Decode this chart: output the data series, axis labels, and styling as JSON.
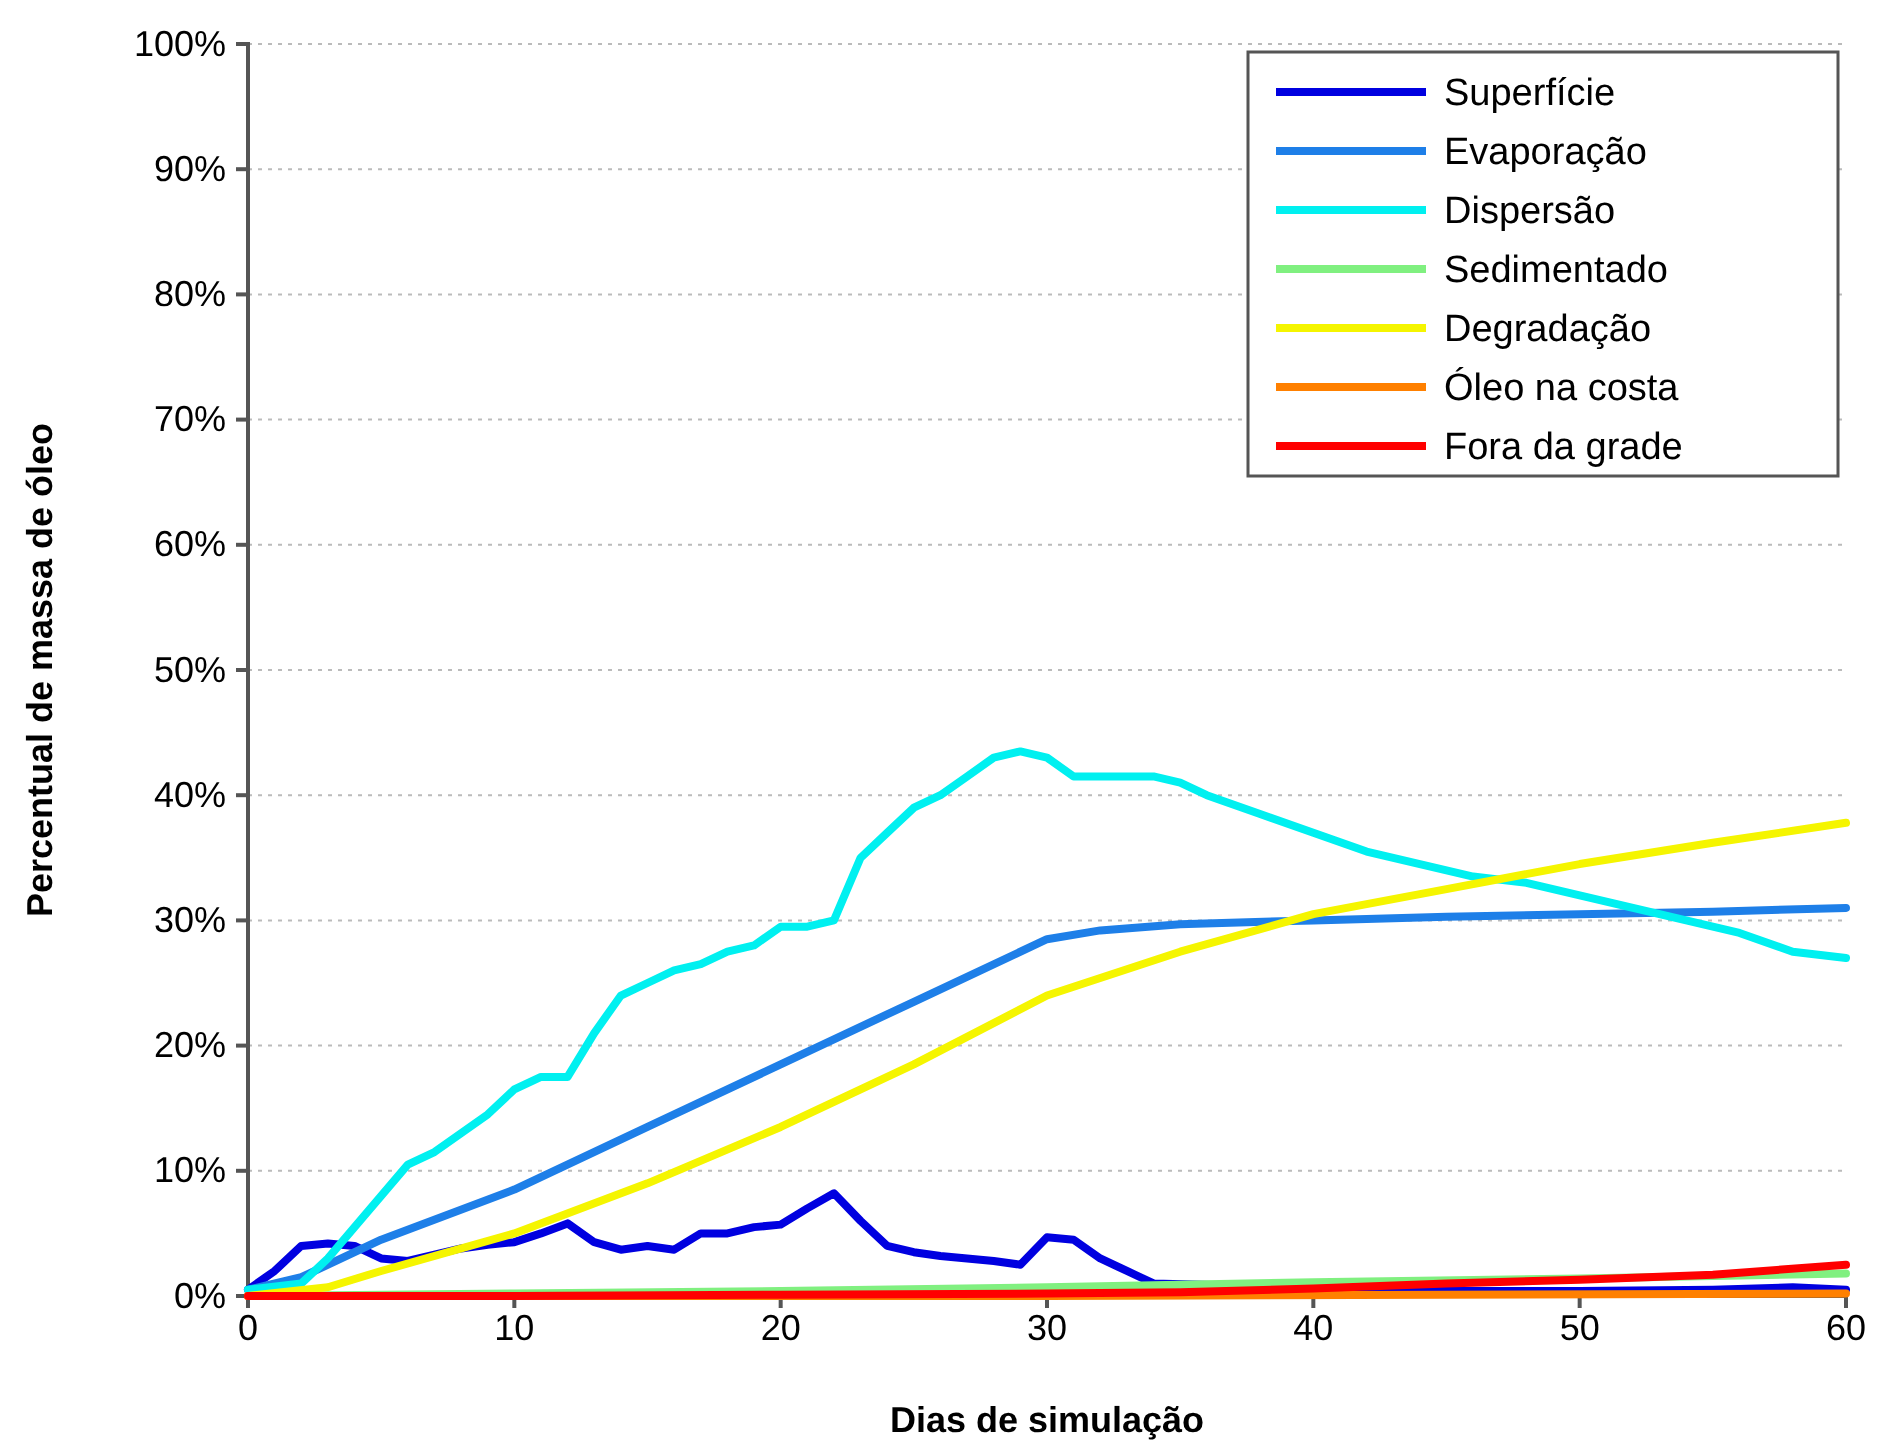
{
  "chart_data": {
    "type": "line",
    "xlabel": "Dias de simulação",
    "ylabel": "Percentual de massa de óleo",
    "xlim": [
      0,
      60
    ],
    "xticks": [
      0,
      10,
      20,
      30,
      40,
      50,
      60
    ],
    "ylim": [
      0,
      100
    ],
    "yticks": [
      {
        "value": 0,
        "label": "0%"
      },
      {
        "value": 10,
        "label": "10%"
      },
      {
        "value": 20,
        "label": "20%"
      },
      {
        "value": 30,
        "label": "30%"
      },
      {
        "value": 40,
        "label": "40%"
      },
      {
        "value": 50,
        "label": "50%"
      },
      {
        "value": 60,
        "label": "60%"
      },
      {
        "value": 70,
        "label": "70%"
      },
      {
        "value": 80,
        "label": "80%"
      },
      {
        "value": 90,
        "label": "90%"
      },
      {
        "value": 100,
        "label": "100%"
      }
    ],
    "grid": "y",
    "legend": "top right",
    "marker": "none",
    "line_style": "solid",
    "series": [
      {
        "name": "Superfície",
        "color": "#0000e0",
        "x": [
          0,
          1,
          2,
          3,
          4,
          5,
          6,
          7,
          8,
          9,
          10,
          11,
          12,
          13,
          14,
          15,
          16,
          17,
          18,
          19,
          20,
          21,
          22,
          23,
          24,
          25,
          26,
          27,
          28,
          29,
          30,
          31,
          32,
          33,
          34,
          35,
          40,
          45,
          50,
          55,
          58,
          60
        ],
        "values": [
          0.5,
          2,
          4,
          4.2,
          4,
          3,
          2.8,
          3.3,
          3.8,
          4.1,
          4.3,
          5,
          5.8,
          4.3,
          3.7,
          4,
          3.7,
          5,
          5,
          5.5,
          5.7,
          7,
          8.2,
          6,
          4,
          3.5,
          3.2,
          3,
          2.8,
          2.5,
          4.7,
          4.5,
          3,
          2,
          1,
          null,
          null,
          0.4,
          0.4,
          0.5,
          0.7,
          0.5
        ]
      },
      {
        "name": "Evaporação",
        "color": "#1e7fe8",
        "x": [
          0,
          2,
          5,
          10,
          15,
          20,
          25,
          30,
          32,
          35,
          40,
          45,
          50,
          55,
          60
        ],
        "values": [
          0.5,
          1.5,
          4.5,
          8.5,
          13.5,
          18.5,
          23.5,
          28.5,
          29.2,
          29.7,
          30,
          30.3,
          30.5,
          30.7,
          31
        ]
      },
      {
        "name": "Dispersão",
        "color": "#00f0f0",
        "x": [
          0,
          2,
          3,
          4,
          5,
          6,
          7,
          8,
          9,
          10,
          11,
          12,
          13,
          14,
          15,
          16,
          17,
          18,
          19,
          20,
          21,
          22,
          23,
          24,
          25,
          26,
          27,
          28,
          29,
          30,
          31,
          32,
          33,
          34,
          35,
          36,
          38,
          40,
          42,
          44,
          46,
          48,
          50,
          52,
          54,
          56,
          58,
          60
        ],
        "values": [
          0.5,
          1,
          3,
          5.5,
          8,
          10.5,
          11.5,
          13,
          14.5,
          16.5,
          17.5,
          17.5,
          21,
          24,
          25,
          26,
          26.5,
          27.5,
          28,
          29.5,
          29.5,
          30,
          35,
          37,
          39,
          40,
          41.5,
          43,
          43.5,
          43,
          41.5,
          41.5,
          41.5,
          41.5,
          41,
          40,
          38.5,
          37,
          35.5,
          34.5,
          33.5,
          33,
          32,
          31,
          30,
          29,
          27.5,
          27
        ]
      },
      {
        "name": "Sedimentado",
        "color": "#80f080",
        "x": [
          0,
          10,
          20,
          30,
          40,
          50,
          60
        ],
        "values": [
          0,
          0.2,
          0.4,
          0.7,
          1.1,
          1.4,
          1.8
        ]
      },
      {
        "name": "Degradação",
        "color": "#f5f500",
        "x": [
          0,
          3,
          5,
          10,
          15,
          20,
          25,
          30,
          35,
          40,
          45,
          50,
          55,
          60
        ],
        "values": [
          0,
          0.7,
          2,
          5,
          9,
          13.5,
          18.5,
          24,
          27.5,
          30.5,
          32.5,
          34.5,
          36.2,
          37.8
        ]
      },
      {
        "name": "Óleo na costa",
        "color": "#ff8000",
        "x": [
          0,
          30,
          60
        ],
        "values": [
          0,
          0,
          0.2
        ]
      },
      {
        "name": "Fora da grade",
        "color": "#ff0000",
        "x": [
          0,
          10,
          20,
          30,
          35,
          40,
          45,
          50,
          55,
          60
        ],
        "values": [
          0,
          0,
          0.1,
          0.2,
          0.3,
          0.6,
          1,
          1.3,
          1.7,
          2.5
        ]
      }
    ]
  }
}
